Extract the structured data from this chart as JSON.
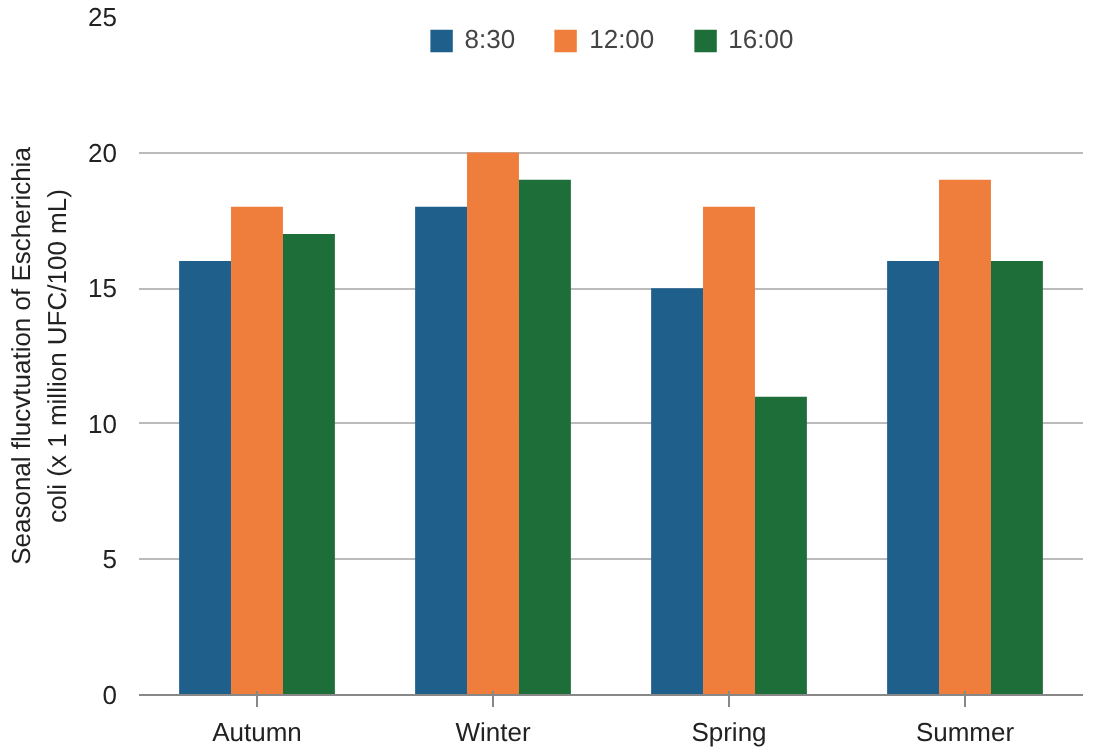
{
  "chart_data": {
    "type": "bar",
    "ylabel": "Seasonal flucvtuation of Escherichia coli (x 1 million UFC/100 mL)",
    "categories": [
      "Autumn",
      "Winter",
      "Spring",
      "Summer"
    ],
    "series": [
      {
        "name": "8:30",
        "color": "#1f5f8b",
        "values": [
          16,
          18,
          15,
          16
        ]
      },
      {
        "name": "12:00",
        "color": "#ef7d3c",
        "values": [
          18,
          20,
          18,
          19
        ]
      },
      {
        "name": "16:00",
        "color": "#1e6e3a",
        "values": [
          17,
          19,
          11,
          16
        ]
      }
    ],
    "ylim": [
      0,
      25
    ],
    "yticks": [
      0,
      5,
      10,
      15,
      20,
      25
    ],
    "grid": "y",
    "legend": "top"
  }
}
